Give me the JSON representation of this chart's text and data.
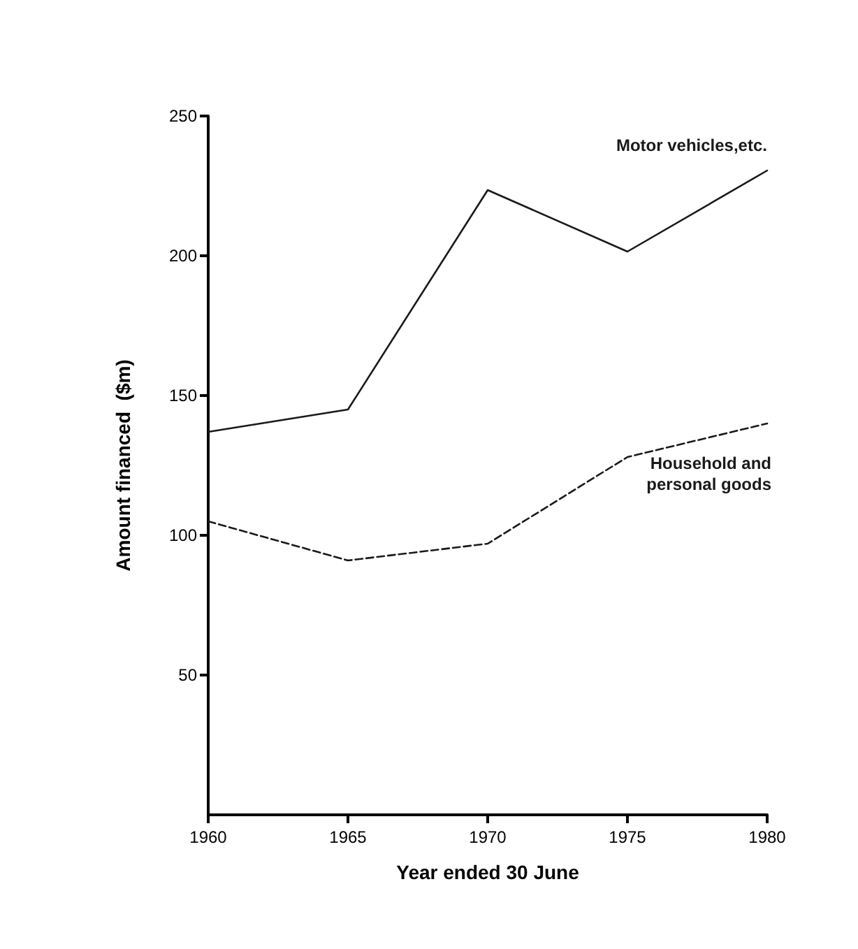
{
  "chart_data": {
    "type": "line",
    "xlabel": "Year ended 30 June",
    "ylabel": "Amount financed  ($m)",
    "x": [
      1960,
      1965,
      1970,
      1975,
      1980
    ],
    "series": [
      {
        "name": "Motor vehicles,etc.",
        "color": "#1a1a1a",
        "line_style": "solid",
        "values": [
          137,
          145,
          223.5,
          201.5,
          230.5
        ]
      },
      {
        "name": "Household and\npersonal goods",
        "color": "#1a1a1a",
        "line_style": "dashed",
        "values": [
          105,
          91,
          97,
          128,
          140
        ]
      }
    ],
    "xlim": [
      1960,
      1980
    ],
    "xticks": [
      1960,
      1965,
      1970,
      1975,
      1980
    ],
    "ylim": [
      0,
      250
    ],
    "yticks": [
      50,
      100,
      150,
      200,
      250
    ],
    "grid": false,
    "legend": false,
    "marker": "none"
  }
}
